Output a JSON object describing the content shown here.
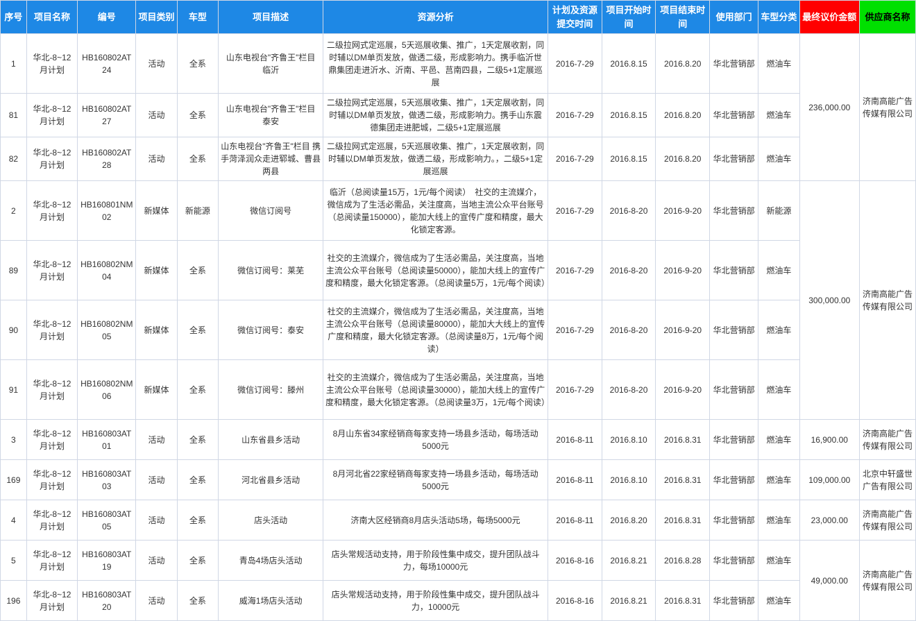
{
  "columns": [
    {
      "key": "seq",
      "label": "序号",
      "class": "col-seq"
    },
    {
      "key": "name",
      "label": "项目名称",
      "class": "col-name"
    },
    {
      "key": "code",
      "label": "编号",
      "class": "col-code"
    },
    {
      "key": "cat",
      "label": "项目类别",
      "class": "col-cat"
    },
    {
      "key": "model",
      "label": "车型",
      "class": "col-model"
    },
    {
      "key": "desc",
      "label": "项目描述",
      "class": "col-desc"
    },
    {
      "key": "analysis",
      "label": "资源分析",
      "class": "col-analysis"
    },
    {
      "key": "submit",
      "label": "计划及资源提交时间",
      "class": "col-submit"
    },
    {
      "key": "start",
      "label": "项目开始时间",
      "class": "col-start"
    },
    {
      "key": "end",
      "label": "项目结束时间",
      "class": "col-end"
    },
    {
      "key": "dept",
      "label": "使用部门",
      "class": "col-dept"
    },
    {
      "key": "vcat",
      "label": "车型分类",
      "class": "col-vcat"
    },
    {
      "key": "amt",
      "label": "最终议价金额",
      "class": "col-amt",
      "hdr": "red"
    },
    {
      "key": "supp",
      "label": "供应商名称",
      "class": "col-supp",
      "hdr": "green"
    }
  ],
  "groups": [
    {
      "amt": "236,000.00",
      "supp": "济南高能广告传媒有限公司",
      "rows": [
        {
          "seq": "1",
          "name": "华北-8~12月计划",
          "code": "HB160802AT24",
          "cat": "活动",
          "model": "全系",
          "desc": "山东电视台\"齐鲁王\"栏目　临沂",
          "analysis": "二级拉网式定巡展，5天巡展收集、推广，1天定展收割，同时辅以DM单页发放，做透二级，形成影响力。携手临沂世鼎集团走进沂水、沂南、平邑、莒南四县，二级5+1定展巡展",
          "submit": "2016-7-29",
          "start": "2016.8.15",
          "end": "2016.8.20",
          "dept": "华北营销部",
          "vcat": "燃油车"
        },
        {
          "seq": "81",
          "name": "华北-8~12月计划",
          "code": "HB160802AT27",
          "cat": "活动",
          "model": "全系",
          "desc": "山东电视台\"齐鲁王\"栏目　　泰安",
          "analysis": "二级拉网式定巡展，5天巡展收集、推广，1天定展收割，同时辅以DM单页发放，做透二级，形成影响力。携手山东震德集团走进肥城，二级5+1定展巡展",
          "submit": "2016-7-29",
          "start": "2016.8.15",
          "end": "2016.8.20",
          "dept": "华北营销部",
          "vcat": "燃油车"
        },
        {
          "seq": "82",
          "name": "华北-8~12月计划",
          "code": "HB160802AT28",
          "cat": "活动",
          "model": "全系",
          "desc": "山东电视台\"齐鲁王\"栏目 携手菏泽润众走进郓城、曹县两县",
          "analysis": "二级拉网式定巡展，5天巡展收集、推广，1天定展收割，同时辅以DM单页发放，做透二级，形成影响力。，二级5+1定展巡展",
          "submit": "2016-7-29",
          "start": "2016.8.15",
          "end": "2016.8.20",
          "dept": "华北营销部",
          "vcat": "燃油车"
        }
      ]
    },
    {
      "amt": "300,000.00",
      "supp": "济南高能广告传媒有限公司",
      "rows": [
        {
          "seq": "2",
          "name": "华北-8~12月计划",
          "code": "HB160801NM02",
          "cat": "新媒体",
          "model": "新能源",
          "desc": "微信订阅号",
          "analysis": "临沂（总阅读量15万，1元/每个阅读）　社交的主流媒介，微信成为了生活必需品，关注度高，当地主流公众平台账号（总阅读量150000），能加大线上的宣传广度和精度，最大化锁定客源。",
          "submit": "2016-7-29",
          "start": "2016-8-20",
          "end": "2016-9-20",
          "dept": "华北营销部",
          "vcat": "新能源"
        },
        {
          "seq": "89",
          "name": "华北-8~12月计划",
          "code": "HB160802NM04",
          "cat": "新媒体",
          "model": "全系",
          "desc": "微信订阅号：莱芜",
          "analysis": "社交的主流媒介，微信成为了生活必需品，关注度高，当地主流公众平台账号（总阅读量50000），能加大线上的宣传广度和精度，最大化锁定客源。（总阅读量5万，1元/每个阅读）",
          "submit": "2016-7-29",
          "start": "2016-8-20",
          "end": "2016-9-20",
          "dept": "华北营销部",
          "vcat": "燃油车"
        },
        {
          "seq": "90",
          "name": "华北-8~12月计划",
          "code": "HB160802NM05",
          "cat": "新媒体",
          "model": "全系",
          "desc": "微信订阅号：泰安",
          "analysis": "社交的主流媒介，微信成为了生活必需品，关注度高，当地主流公众平台账号（总阅读量80000），能加大大线上的宣传广度和精度，最大化锁定客源。（总阅读量8万，1元/每个阅读）",
          "submit": "2016-7-29",
          "start": "2016-8-20",
          "end": "2016-9-20",
          "dept": "华北营销部",
          "vcat": "燃油车"
        },
        {
          "seq": "91",
          "name": "华北-8~12月计划",
          "code": "HB160802NM06",
          "cat": "新媒体",
          "model": "全系",
          "desc": "微信订阅号：滕州",
          "analysis": "社交的主流媒介，微信成为了生活必需品，关注度高，当地主流公众平台账号（总阅读量30000），能加大线上的宣传广度和精度，最大化锁定客源。（总阅读量3万，1元/每个阅读）",
          "submit": "2016-7-29",
          "start": "2016-8-20",
          "end": "2016-9-20",
          "dept": "华北营销部",
          "vcat": "燃油车"
        }
      ]
    },
    {
      "amt": "16,900.00",
      "supp": "济南高能广告传媒有限公司",
      "rows": [
        {
          "seq": "3",
          "name": "华北-8~12月计划",
          "code": "HB160803AT01",
          "cat": "活动",
          "model": "全系",
          "desc": "山东省县乡活动",
          "analysis": "8月山东省34家经销商每家支持一场县乡活动，每场活动5000元",
          "submit": "2016-8-11",
          "start": "2016.8.10",
          "end": "2016.8.31",
          "dept": "华北营销部",
          "vcat": "燃油车"
        }
      ]
    },
    {
      "amt": "109,000.00",
      "supp": "北京中轩盛世广告有限公司",
      "rows": [
        {
          "seq": "169",
          "name": "华北-8~12月计划",
          "code": "HB160803AT03",
          "cat": "活动",
          "model": "全系",
          "desc": "河北省县乡活动",
          "analysis": "8月河北省22家经销商每家支持一场县乡活动，每场活动5000元",
          "submit": "2016-8-11",
          "start": "2016.8.10",
          "end": "2016.8.31",
          "dept": "华北营销部",
          "vcat": "燃油车"
        }
      ]
    },
    {
      "amt": "23,000.00",
      "supp": "济南高能广告传媒有限公司",
      "rows": [
        {
          "seq": "4",
          "name": "华北-8~12月计划",
          "code": "HB160803AT05",
          "cat": "活动",
          "model": "全系",
          "desc": "店头活动",
          "analysis": "济南大区经销商8月店头活动5场，每场5000元",
          "submit": "2016-8-11",
          "start": "2016.8.20",
          "end": "2016.8.31",
          "dept": "华北营销部",
          "vcat": "燃油车"
        }
      ]
    },
    {
      "amt": "49,000.00",
      "supp": "济南高能广告传媒有限公司",
      "rows": [
        {
          "seq": "5",
          "name": "华北-8~12月计划",
          "code": "HB160803AT19",
          "cat": "活动",
          "model": "全系",
          "desc": "青岛4场店头活动",
          "analysis": "店头常规活动支持，用于阶段性集中成交，提升团队战斗力，每场10000元",
          "submit": "2016-8-16",
          "start": "2016.8.21",
          "end": "2016.8.28",
          "dept": "华北营销部",
          "vcat": "燃油车"
        },
        {
          "seq": "196",
          "name": "华北-8~12月计划",
          "code": "HB160803AT20",
          "cat": "活动",
          "model": "全系",
          "desc": "威海1场店头活动",
          "analysis": "店头常规活动支持，用于阶段性集中成交，提升团队战斗力，10000元",
          "submit": "2016-8-16",
          "start": "2016.8.21",
          "end": "2016.8.31",
          "dept": "华北营销部",
          "vcat": "燃油车"
        }
      ]
    }
  ],
  "row_heights": {
    "default": 58,
    "tall": 86
  }
}
